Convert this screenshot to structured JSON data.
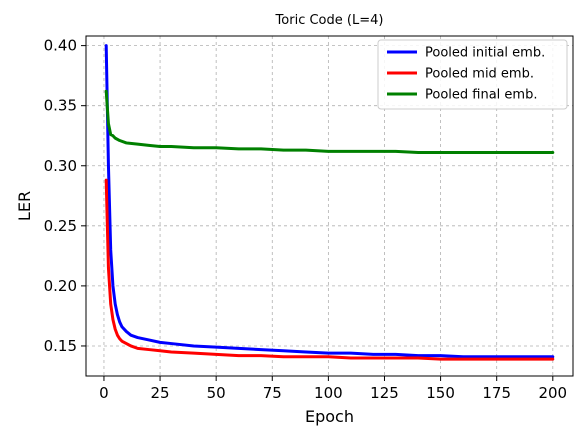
{
  "chart_data": {
    "type": "line",
    "title": "Toric Code (L=4)",
    "xlabel": "Epoch",
    "ylabel": "LER",
    "xlim": [
      -8,
      209
    ],
    "ylim": [
      0.125,
      0.408
    ],
    "xticks": [
      0,
      25,
      50,
      75,
      100,
      125,
      150,
      175,
      200
    ],
    "yticks": [
      0.15,
      0.2,
      0.25,
      0.3,
      0.35,
      0.4
    ],
    "ytick_labels": [
      "0.15",
      "0.20",
      "0.25",
      "0.30",
      "0.35",
      "0.40"
    ],
    "grid": true,
    "legend_position": "top-right",
    "series": [
      {
        "name": "Pooled initial emb.",
        "color": "#0000ff",
        "points": [
          [
            1,
            0.4
          ],
          [
            2,
            0.3
          ],
          [
            3,
            0.23
          ],
          [
            4,
            0.2
          ],
          [
            5,
            0.185
          ],
          [
            6,
            0.176
          ],
          [
            7,
            0.17
          ],
          [
            8,
            0.166
          ],
          [
            10,
            0.162
          ],
          [
            12,
            0.159
          ],
          [
            15,
            0.157
          ],
          [
            20,
            0.155
          ],
          [
            25,
            0.153
          ],
          [
            30,
            0.152
          ],
          [
            40,
            0.15
          ],
          [
            50,
            0.149
          ],
          [
            60,
            0.148
          ],
          [
            70,
            0.147
          ],
          [
            80,
            0.146
          ],
          [
            90,
            0.145
          ],
          [
            100,
            0.144
          ],
          [
            110,
            0.144
          ],
          [
            120,
            0.143
          ],
          [
            130,
            0.143
          ],
          [
            140,
            0.142
          ],
          [
            150,
            0.142
          ],
          [
            160,
            0.141
          ],
          [
            170,
            0.141
          ],
          [
            180,
            0.141
          ],
          [
            190,
            0.141
          ],
          [
            200,
            0.141
          ]
        ]
      },
      {
        "name": "Pooled mid emb.",
        "color": "#ff0000",
        "points": [
          [
            1,
            0.288
          ],
          [
            2,
            0.215
          ],
          [
            3,
            0.185
          ],
          [
            4,
            0.172
          ],
          [
            5,
            0.164
          ],
          [
            6,
            0.159
          ],
          [
            7,
            0.156
          ],
          [
            8,
            0.154
          ],
          [
            10,
            0.152
          ],
          [
            12,
            0.15
          ],
          [
            15,
            0.148
          ],
          [
            20,
            0.147
          ],
          [
            25,
            0.146
          ],
          [
            30,
            0.145
          ],
          [
            40,
            0.144
          ],
          [
            50,
            0.143
          ],
          [
            60,
            0.142
          ],
          [
            70,
            0.142
          ],
          [
            80,
            0.141
          ],
          [
            90,
            0.141
          ],
          [
            100,
            0.141
          ],
          [
            110,
            0.14
          ],
          [
            120,
            0.14
          ],
          [
            130,
            0.14
          ],
          [
            140,
            0.14
          ],
          [
            150,
            0.139
          ],
          [
            160,
            0.139
          ],
          [
            170,
            0.139
          ],
          [
            180,
            0.139
          ],
          [
            190,
            0.139
          ],
          [
            200,
            0.139
          ]
        ]
      },
      {
        "name": "Pooled final emb.",
        "color": "#008000",
        "points": [
          [
            1,
            0.362
          ],
          [
            2,
            0.335
          ],
          [
            3,
            0.326
          ],
          [
            4,
            0.325
          ],
          [
            5,
            0.323
          ],
          [
            7,
            0.321
          ],
          [
            10,
            0.319
          ],
          [
            15,
            0.318
          ],
          [
            20,
            0.317
          ],
          [
            25,
            0.316
          ],
          [
            30,
            0.316
          ],
          [
            40,
            0.315
          ],
          [
            50,
            0.315
          ],
          [
            60,
            0.314
          ],
          [
            70,
            0.314
          ],
          [
            80,
            0.313
          ],
          [
            90,
            0.313
          ],
          [
            100,
            0.312
          ],
          [
            110,
            0.312
          ],
          [
            120,
            0.312
          ],
          [
            130,
            0.312
          ],
          [
            140,
            0.311
          ],
          [
            150,
            0.311
          ],
          [
            160,
            0.311
          ],
          [
            170,
            0.311
          ],
          [
            180,
            0.311
          ],
          [
            190,
            0.311
          ],
          [
            200,
            0.311
          ]
        ]
      }
    ]
  }
}
